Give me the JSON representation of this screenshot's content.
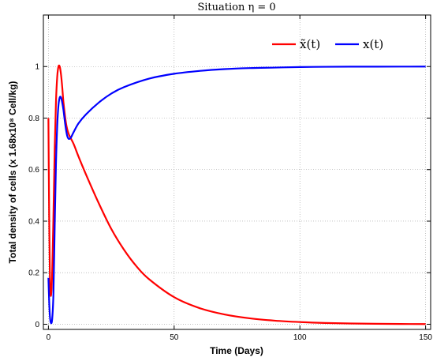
{
  "chart_data": {
    "type": "line",
    "title": "Situation η = 0",
    "xlabel": "Time (Days)",
    "ylabel": "Total density of cells (x  1.68x10⁸ Cell/kg)",
    "xlim": [
      -2,
      152
    ],
    "ylim": [
      -0.02,
      1.2
    ],
    "xticks": [
      0,
      50,
      100,
      150
    ],
    "yticks": [
      0,
      0.2,
      0.4,
      0.6,
      0.8,
      1
    ],
    "ytick_labels": [
      "0",
      "0.2",
      "0.4",
      "0.6",
      "0.8",
      "1"
    ],
    "grid": true,
    "legend_position": "top-right",
    "series": [
      {
        "name": "x̃(t)",
        "color": "#ff0000",
        "x": [
          0,
          0.3,
          0.6,
          1,
          1.5,
          2,
          2.5,
          3,
          3.5,
          4,
          4.5,
          5,
          5.5,
          6,
          7,
          8,
          10,
          12,
          15,
          20,
          25,
          30,
          35,
          40,
          50,
          60,
          70,
          80,
          90,
          100,
          110,
          120,
          130,
          140,
          150
        ],
        "y": [
          0.8,
          0.42,
          0.18,
          0.11,
          0.2,
          0.42,
          0.68,
          0.86,
          0.96,
          1.0,
          1.0,
          0.97,
          0.92,
          0.86,
          0.78,
          0.74,
          0.7,
          0.65,
          0.58,
          0.47,
          0.37,
          0.29,
          0.225,
          0.175,
          0.105,
          0.063,
          0.038,
          0.023,
          0.014,
          0.0085,
          0.005,
          0.003,
          0.0018,
          0.0011,
          0.0007
        ]
      },
      {
        "name": "x(t)",
        "color": "#0000ff",
        "x": [
          0,
          0.3,
          0.6,
          1,
          1.5,
          2,
          2.5,
          3,
          3.5,
          4,
          4.5,
          5,
          5.5,
          6,
          6.5,
          7,
          7.5,
          8,
          8.5,
          9,
          10,
          12,
          15,
          20,
          25,
          30,
          40,
          50,
          60,
          70,
          80,
          90,
          100,
          110,
          120,
          130,
          140,
          150
        ],
        "y": [
          0.18,
          0.09,
          0.03,
          0.005,
          0.02,
          0.12,
          0.38,
          0.62,
          0.77,
          0.85,
          0.88,
          0.88,
          0.86,
          0.83,
          0.79,
          0.755,
          0.73,
          0.72,
          0.72,
          0.725,
          0.745,
          0.78,
          0.815,
          0.86,
          0.895,
          0.92,
          0.953,
          0.972,
          0.983,
          0.99,
          0.994,
          0.996,
          0.998,
          0.999,
          0.9995,
          0.9997,
          0.9998,
          1.0
        ]
      }
    ]
  }
}
